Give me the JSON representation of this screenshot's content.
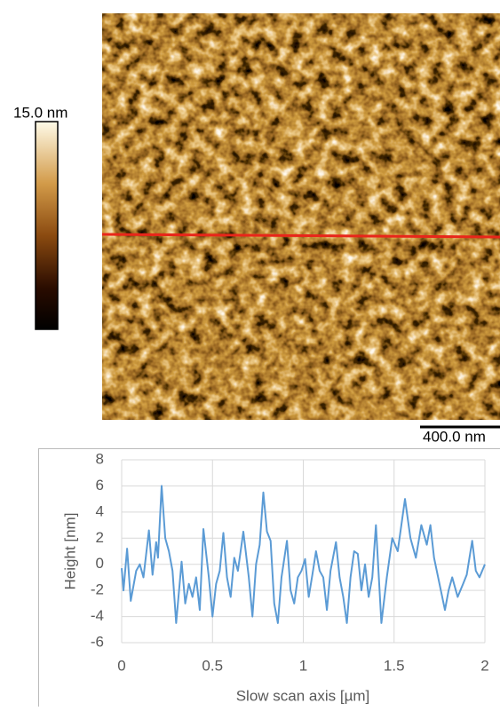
{
  "afm_image": {
    "colorbar_label": "15.0 nm",
    "scale_bar_label": "400.0 nm"
  },
  "chart_data": {
    "type": "line",
    "x_label": "Slow scan axis [µm]",
    "y_label": "Height [nm]",
    "color": "#5b9bd5",
    "x": [
      0,
      0.01,
      0.03,
      0.05,
      0.08,
      0.1,
      0.12,
      0.15,
      0.17,
      0.19,
      0.2,
      0.22,
      0.24,
      0.26,
      0.28,
      0.3,
      0.33,
      0.35,
      0.37,
      0.39,
      0.41,
      0.43,
      0.45,
      0.48,
      0.5,
      0.52,
      0.54,
      0.56,
      0.58,
      0.6,
      0.62,
      0.64,
      0.67,
      0.7,
      0.72,
      0.74,
      0.76,
      0.78,
      0.8,
      0.82,
      0.84,
      0.86,
      0.88,
      0.91,
      0.93,
      0.95,
      0.97,
      0.99,
      1.01,
      1.03,
      1.05,
      1.07,
      1.09,
      1.11,
      1.13,
      1.15,
      1.18,
      1.2,
      1.22,
      1.24,
      1.26,
      1.28,
      1.3,
      1.32,
      1.34,
      1.36,
      1.38,
      1.4,
      1.43,
      1.46,
      1.49,
      1.52,
      1.56,
      1.59,
      1.62,
      1.65,
      1.68,
      1.7,
      1.72,
      1.75,
      1.78,
      1.8,
      1.82,
      1.85,
      1.88,
      1.9,
      1.93,
      1.95,
      1.97,
      2
    ],
    "values": [
      -0.3,
      -2,
      1.2,
      -2.8,
      -0.5,
      0,
      -1,
      2.6,
      -0.8,
      1.7,
      0.5,
      6,
      2,
      1,
      -0.5,
      -4.5,
      0.2,
      -3,
      -1.5,
      -2.5,
      -1,
      -3.5,
      2.7,
      -1,
      -4,
      -1.5,
      -0.5,
      2.4,
      -1,
      -2.5,
      0.5,
      -0.5,
      2.5,
      -1,
      -4,
      0,
      1.5,
      5.5,
      2.5,
      1.8,
      -3,
      -4.5,
      -1,
      1.8,
      -2,
      -3,
      -1,
      -0.5,
      0.4,
      -2.5,
      -0.8,
      1,
      -0.5,
      -1,
      -3.5,
      -0.5,
      1.7,
      -1,
      -2.5,
      -4.5,
      -1,
      1,
      0.8,
      -2,
      0,
      -2.5,
      -1,
      3,
      -4.5,
      -1,
      2,
      1,
      5,
      2,
      0.5,
      3,
      1.5,
      3,
      0.5,
      -1.5,
      -3.5,
      -2,
      -1,
      -2.5,
      -1.5,
      -0.8,
      1.8,
      -0.5,
      -1,
      0
    ],
    "xlim": [
      0,
      2
    ],
    "xticks": [
      0,
      0.5,
      1,
      1.5,
      2
    ],
    "ylim": [
      -6,
      8
    ],
    "yticks": [
      -6,
      -4,
      -2,
      0,
      2,
      4,
      6,
      8
    ],
    "grid": true
  }
}
